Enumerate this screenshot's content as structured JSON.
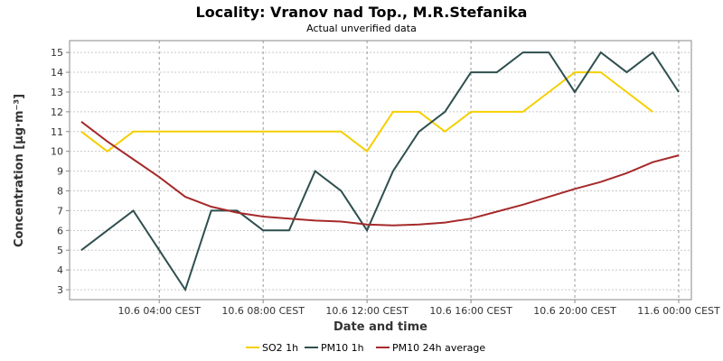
{
  "chart_data": {
    "type": "line",
    "title": "Locality: Vranov nad Top., M.R.Stefanika",
    "subtitle": "Actual unverified data",
    "xlabel": "Date and time",
    "ylabel": "Concentration [µg·m⁻³]",
    "x": [
      "10.6 01:00",
      "10.6 02:00",
      "10.6 03:00",
      "10.6 04:00",
      "10.6 05:00",
      "10.6 06:00",
      "10.6 07:00",
      "10.6 08:00",
      "10.6 09:00",
      "10.6 10:00",
      "10.6 11:00",
      "10.6 12:00",
      "10.6 13:00",
      "10.6 14:00",
      "10.6 15:00",
      "10.6 16:00",
      "10.6 17:00",
      "10.6 18:00",
      "10.6 19:00",
      "10.6 20:00",
      "10.6 21:00",
      "10.6 22:00",
      "10.6 23:00",
      "11.6 00:00"
    ],
    "x_ticks": [
      "10.6 04:00 CEST",
      "10.6 08:00 CEST",
      "10.6 12:00 CEST",
      "10.6 16:00 CEST",
      "10.6 20:00 CEST",
      "11.6 00:00 CEST"
    ],
    "y_ticks": [
      3,
      4,
      5,
      6,
      7,
      8,
      9,
      10,
      11,
      12,
      13,
      14,
      15
    ],
    "ylim": [
      2.5,
      15.6
    ],
    "grid": true,
    "legend_position": "bottom",
    "series": [
      {
        "name": "SO2 1h",
        "color": "#f5cf00",
        "values": [
          11,
          10,
          11,
          11,
          11,
          11,
          11,
          11,
          11,
          11,
          11,
          10,
          12,
          12,
          11,
          12,
          12,
          12,
          13,
          14,
          14,
          13,
          12,
          null
        ]
      },
      {
        "name": "PM10 1h",
        "color": "#2f4f4f",
        "values": [
          5,
          6,
          7,
          5,
          3,
          7,
          7,
          6,
          6,
          9,
          8,
          6,
          9,
          11,
          12,
          14,
          14,
          15,
          15,
          13,
          15,
          14,
          15,
          13
        ]
      },
      {
        "name": "PM10 24h average",
        "color": "#a52a2a",
        "values": [
          11.5,
          10.5,
          9.6,
          8.7,
          7.7,
          7.2,
          6.9,
          6.7,
          6.6,
          6.5,
          6.45,
          6.3,
          6.25,
          6.3,
          6.4,
          6.6,
          6.95,
          7.3,
          7.7,
          8.1,
          8.45,
          8.9,
          9.45,
          9.8
        ]
      }
    ]
  }
}
